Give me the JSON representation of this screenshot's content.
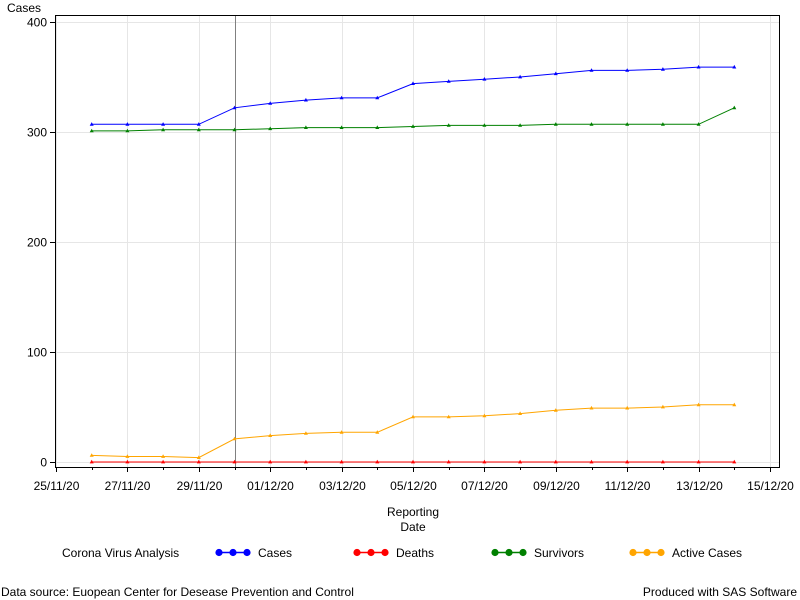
{
  "chart_data": {
    "type": "line",
    "ylabel": "Cases",
    "xlabel_line1": "Reporting",
    "xlabel_line2": "Date",
    "ylim": [
      0,
      400
    ],
    "yticks": [
      0,
      100,
      200,
      300,
      400
    ],
    "xlim": [
      "2020-11-25",
      "2020-12-15"
    ],
    "xticks": [
      "2020-11-25",
      "2020-11-27",
      "2020-11-29",
      "2020-12-01",
      "2020-12-03",
      "2020-12-05",
      "2020-12-07",
      "2020-12-09",
      "2020-12-11",
      "2020-12-13",
      "2020-12-15"
    ],
    "xtick_labels": [
      "25/11/20",
      "27/11/20",
      "29/11/20",
      "01/12/20",
      "03/12/20",
      "05/12/20",
      "07/12/20",
      "09/12/20",
      "11/12/20",
      "13/12/20",
      "15/12/20"
    ],
    "reference_line_x": "2020-11-30",
    "grid": true,
    "legend_title": "Corona Virus Analysis",
    "legend_position": "bottom",
    "x": [
      "2020-11-26",
      "2020-11-27",
      "2020-11-28",
      "2020-11-29",
      "2020-11-30",
      "2020-12-01",
      "2020-12-02",
      "2020-12-03",
      "2020-12-04",
      "2020-12-05",
      "2020-12-06",
      "2020-12-07",
      "2020-12-08",
      "2020-12-09",
      "2020-12-10",
      "2020-12-11",
      "2020-12-12",
      "2020-12-13",
      "2020-12-14"
    ],
    "series": [
      {
        "name": "Cases",
        "color": "#0000ff",
        "values": [
          307,
          307,
          307,
          307,
          322,
          326,
          329,
          331,
          331,
          344,
          346,
          348,
          350,
          353,
          356,
          356,
          357,
          359,
          359
        ]
      },
      {
        "name": "Deaths",
        "color": "#ff0000",
        "values": [
          0,
          0,
          0,
          0,
          0,
          0,
          0,
          0,
          0,
          0,
          0,
          0,
          0,
          0,
          0,
          0,
          0,
          0,
          0
        ]
      },
      {
        "name": "Survivors",
        "color": "#008000",
        "values": [
          301,
          301,
          302,
          302,
          302,
          303,
          304,
          304,
          304,
          305,
          306,
          306,
          306,
          307,
          307,
          307,
          307,
          307,
          322
        ]
      },
      {
        "name": "Active Cases",
        "color": "#ffa500",
        "values": [
          6,
          5,
          5,
          4,
          21,
          24,
          26,
          27,
          27,
          41,
          41,
          42,
          44,
          47,
          49,
          49,
          50,
          52,
          52
        ]
      }
    ]
  },
  "footer": {
    "left": "Data source: Euopean Center for Desease Prevention and Control",
    "right": "Produced with SAS Software"
  }
}
